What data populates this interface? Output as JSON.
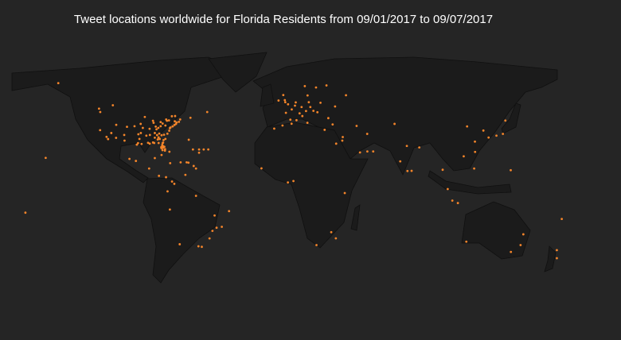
{
  "chart_data": {
    "type": "scatter",
    "title": "Tweet locations worldwide for Florida Residents from 09/01/2017 to 09/07/2017",
    "color": "#f5852a",
    "x": [
      -122.4,
      -118.2,
      -117.2,
      -122.3,
      -112,
      -115.1,
      -104.9,
      -111.9,
      -97.7,
      -95.4,
      -96.8,
      -98.5,
      -90.1,
      -90,
      -86.8,
      -84.4,
      -81.7,
      -82.5,
      -81.4,
      -80.2,
      -80.1,
      -82.6,
      -81.8,
      -84.3,
      -87.2,
      -80.8,
      -78.6,
      -77,
      -76.6,
      -75.2,
      -74,
      -71.1,
      -73.8,
      -79.9,
      -81.7,
      -83,
      -84.5,
      -86.2,
      -87.6,
      -83,
      -90.2,
      -94.6,
      -93.3,
      -88,
      -85.7,
      -77.4,
      -79.9,
      -81.1,
      -82.4,
      -86.8,
      -88,
      -91.2,
      -92.3,
      -97.5,
      -95.9,
      -96,
      -106.7,
      -106.5,
      -100,
      -78.9,
      -73,
      -70.3,
      -72.6,
      -77.6,
      -80.8,
      -81.5,
      -82,
      -80.6,
      -84.9,
      -83.6,
      -85.3,
      -83.9,
      -82.5,
      -81.4,
      -79.4,
      -75.7,
      -73.6,
      -123.1,
      -114.1,
      -63.6,
      -52.7,
      -66.1,
      -64.9,
      -77.3,
      -76.8,
      -70,
      -61.5,
      -82.4,
      -64.7,
      -60,
      -62,
      -58,
      -55,
      -52,
      -58,
      -157.8,
      -99.1,
      -103.3,
      -86.8,
      -90.5,
      -84.1,
      -79.5,
      -74.1,
      -75.6,
      -66.9,
      -78.5,
      -77,
      -70.6,
      -58.4,
      -46.6,
      -43.2,
      -47.9,
      -38.5,
      -49.3,
      -51.2,
      -60,
      -56.2,
      -0.1,
      -2.2,
      -3.2,
      -6.3,
      2.3,
      4.9,
      4.4,
      13.4,
      8.7,
      11.6,
      9.2,
      12.5,
      -3.7,
      2.2,
      -9.1,
      7.4,
      16.4,
      14.4,
      21,
      18.1,
      10.8,
      12.6,
      24.9,
      23.7,
      28.9,
      30.5,
      37.6,
      19,
      26.1,
      -1.5,
      5.4,
      1.4,
      -1.9,
      35.2,
      55.3,
      51.5,
      46.7,
      31.2,
      3.4,
      -0.2,
      36.8,
      28,
      18.4,
      31,
      -17.4,
      72.9,
      77.2,
      77.6,
      80.3,
      100.5,
      103.8,
      106.8,
      121,
      114.2,
      121.5,
      116.4,
      121.6,
      127,
      139.7,
      135.5,
      130.4,
      141.3,
      151.2,
      144.9,
      153,
      115.9,
      174.8,
      174.8,
      144.8,
      110.4,
      85.3,
      69.2,
      44.5,
      51.4,
      35.5,
      178,
      -171,
      -149.6
    ],
    "values": [
      37.8,
      34,
      32.7,
      47.6,
      33.4,
      36.2,
      39.7,
      40.8,
      30.3,
      29.8,
      32.8,
      29.4,
      30,
      35.1,
      36.2,
      33.7,
      30.3,
      28,
      28.5,
      25.8,
      26.7,
      27.8,
      26.1,
      30.4,
      30.4,
      35.2,
      35.8,
      38.9,
      39.3,
      39.9,
      40.7,
      42.4,
      42.7,
      40.4,
      41.5,
      40,
      39.1,
      39.8,
      41.9,
      42.3,
      38.6,
      39.1,
      45,
      43,
      38.3,
      37.5,
      32.8,
      32.1,
      34.9,
      33.5,
      30.7,
      30.5,
      34.7,
      35.5,
      36.2,
      41.3,
      35.1,
      31.8,
      40,
      43,
      41.3,
      43.7,
      42.1,
      43.2,
      28.1,
      27.5,
      29.2,
      28.1,
      32.5,
      32.8,
      35,
      35.9,
      27.3,
      30.6,
      43.7,
      45.4,
      45.5,
      49.3,
      51,
      44.6,
      47.6,
      18.5,
      18.3,
      25.1,
      18,
      18.5,
      16.2,
      23.1,
      32.3,
      14.6,
      26.5,
      26.5,
      26.5,
      26.5,
      24.5,
      21.3,
      19.4,
      20.7,
      21.2,
      14.6,
      9.9,
      9,
      4.7,
      6.2,
      10.5,
      -0.2,
      -12,
      -33.4,
      -34.6,
      -23.5,
      -22.9,
      -15.8,
      -13,
      -25.4,
      -30,
      -3.1,
      -34.9,
      51.5,
      53.5,
      55.9,
      53.3,
      48.9,
      52.4,
      50.8,
      52.5,
      50.1,
      48.1,
      45.5,
      41.9,
      40.4,
      41.4,
      38.7,
      46.9,
      48.2,
      50.1,
      52.2,
      59.3,
      59.9,
      55.7,
      60.2,
      38,
      41,
      50.4,
      55.8,
      47.5,
      44.4,
      47.2,
      43.3,
      43.6,
      52.5,
      31.8,
      25.3,
      25.3,
      24.7,
      30,
      6.5,
      5.6,
      -1.3,
      -26.2,
      -33.9,
      -29.9,
      14.7,
      19.1,
      28.6,
      13,
      13.1,
      13.8,
      1.3,
      -6.2,
      14.6,
      22.3,
      31.2,
      39.9,
      25,
      37.6,
      35.7,
      34.7,
      33.6,
      43.1,
      -33.9,
      -37.8,
      -27.5,
      -31.9,
      -36.8,
      -41.3,
      13.5,
      -7.8,
      27.7,
      41.3,
      40.2,
      35.7,
      33.9,
      -18,
      -14,
      61.2
    ]
  }
}
